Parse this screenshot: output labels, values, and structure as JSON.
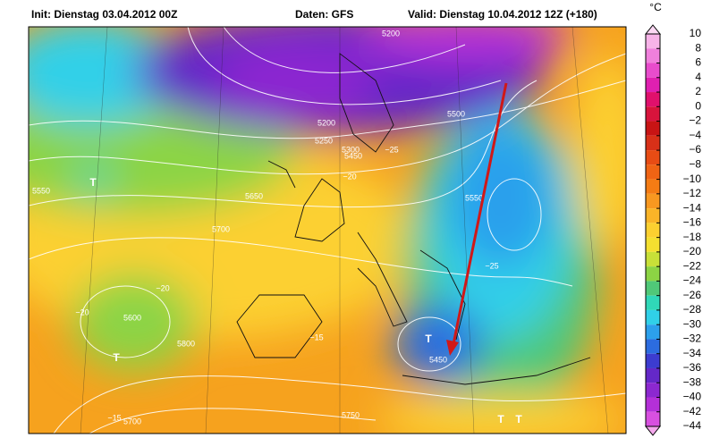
{
  "header": {
    "init": "Init: Dienstag 03.04.2012 00Z",
    "source": "Daten: GFS",
    "valid": "Valid: Dienstag 10.04.2012 12Z (+180)"
  },
  "colorbar": {
    "unit": "°C",
    "ticks": [
      10,
      8,
      6,
      4,
      2,
      0,
      {
        "value": -2,
        "label": "−2"
      },
      {
        "value": -4,
        "label": "−4"
      },
      {
        "value": -6,
        "label": "−6"
      },
      {
        "value": -8,
        "label": "−8"
      },
      {
        "value": -10,
        "label": "−10"
      },
      {
        "value": -12,
        "label": "−12"
      },
      {
        "value": -14,
        "label": "−14"
      },
      {
        "value": -16,
        "label": "−16"
      },
      {
        "value": -18,
        "label": "−18"
      },
      {
        "value": -20,
        "label": "−20"
      },
      {
        "value": -22,
        "label": "−22"
      },
      {
        "value": -24,
        "label": "−24"
      },
      {
        "value": -26,
        "label": "−26"
      },
      {
        "value": -28,
        "label": "−28"
      },
      {
        "value": -30,
        "label": "−30"
      },
      {
        "value": -32,
        "label": "−32"
      },
      {
        "value": -34,
        "label": "−34"
      },
      {
        "value": -36,
        "label": "−36"
      },
      {
        "value": -38,
        "label": "−38"
      },
      {
        "value": -40,
        "label": "−40"
      },
      {
        "value": -42,
        "label": "−42"
      },
      {
        "value": -44,
        "label": "−44"
      }
    ],
    "colors": [
      "#f7b3e8",
      "#f080dc",
      "#e84ccc",
      "#e020b0",
      "#e0106c",
      "#d8143c",
      "#c81414",
      "#d83018",
      "#e84c14",
      "#f06414",
      "#f47c14",
      "#f89820",
      "#fab428",
      "#fcd030",
      "#f4e030",
      "#c8e038",
      "#8cd444",
      "#50c878",
      "#30d8b8",
      "#30d0e8",
      "#2ca0ec",
      "#2c6ce0",
      "#3c3cd0",
      "#6428c8",
      "#8c28d0",
      "#b430d8",
      "#d850e0"
    ]
  },
  "map_labels": [
    "5200",
    "5200",
    "5250",
    "5300",
    "5450",
    "5500",
    "5550",
    "5650",
    "5700",
    "5600",
    "5800",
    "5750",
    "5700",
    "5450",
    "5550",
    "−20",
    "−20",
    "−20",
    "−25",
    "−25",
    "−15",
    "−15",
    "T",
    "T",
    "T",
    "T",
    "T"
  ]
}
